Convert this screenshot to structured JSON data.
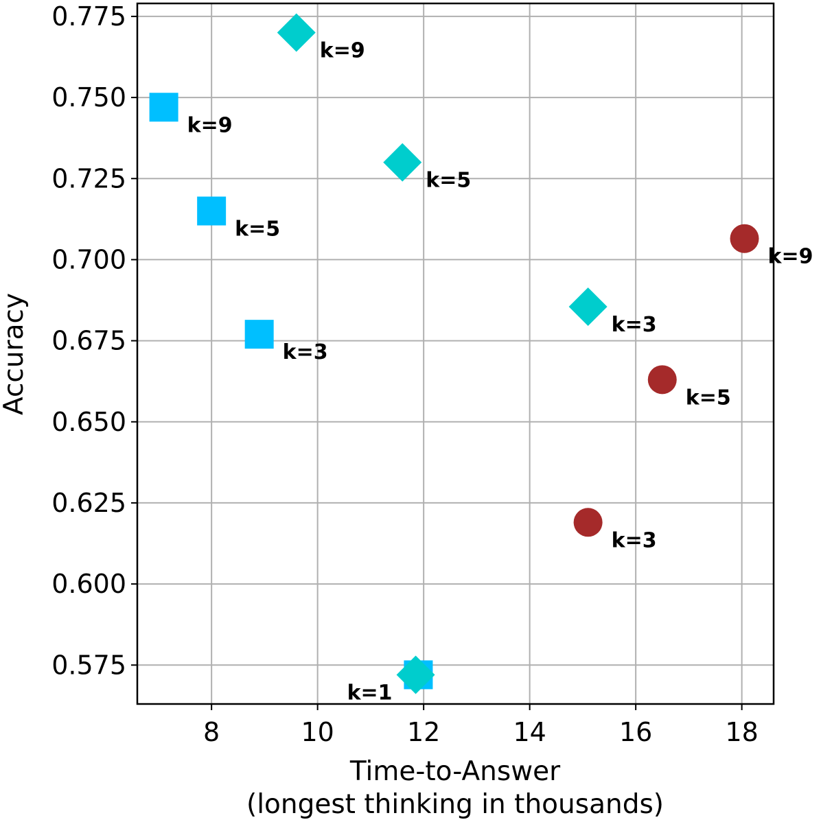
{
  "chart_data": {
    "type": "scatter",
    "xlabel": "Time-to-Answer",
    "xlabel_line2": "(longest thinking in thousands)",
    "ylabel": "Accuracy",
    "xlim": [
      6.6,
      18.6
    ],
    "ylim": [
      0.563,
      0.779
    ],
    "x_ticks": [
      8,
      10,
      12,
      14,
      16,
      18
    ],
    "x_tick_labels": [
      "8",
      "10",
      "12",
      "14",
      "16",
      "18"
    ],
    "y_ticks": [
      0.575,
      0.6,
      0.625,
      0.65,
      0.675,
      0.7,
      0.725,
      0.75,
      0.775
    ],
    "y_tick_labels": [
      "0.575",
      "0.600",
      "0.625",
      "0.650",
      "0.675",
      "0.700",
      "0.725",
      "0.750",
      "0.775"
    ],
    "grid": true,
    "legend": "none",
    "series": [
      {
        "marker": "square",
        "color": "#00bfff",
        "points": [
          {
            "x": 11.9,
            "y": 0.572,
            "label": ""
          },
          {
            "x": 8.9,
            "y": 0.677,
            "label": "k=3"
          },
          {
            "x": 8.0,
            "y": 0.715,
            "label": "k=5"
          },
          {
            "x": 7.1,
            "y": 0.747,
            "label": "k=9"
          }
        ]
      },
      {
        "marker": "diamond",
        "color": "#00cdcd",
        "points": [
          {
            "x": 11.85,
            "y": 0.572,
            "label": "k=1"
          },
          {
            "x": 15.1,
            "y": 0.6855,
            "label": "k=3"
          },
          {
            "x": 11.6,
            "y": 0.73,
            "label": "k=5"
          },
          {
            "x": 9.6,
            "y": 0.77,
            "label": "k=9"
          }
        ]
      },
      {
        "marker": "circle",
        "color": "#a52a2a",
        "points": [
          {
            "x": 15.1,
            "y": 0.619,
            "label": "k=3"
          },
          {
            "x": 16.5,
            "y": 0.663,
            "label": "k=5"
          },
          {
            "x": 18.05,
            "y": 0.7065,
            "label": "k=9"
          }
        ]
      }
    ]
  }
}
